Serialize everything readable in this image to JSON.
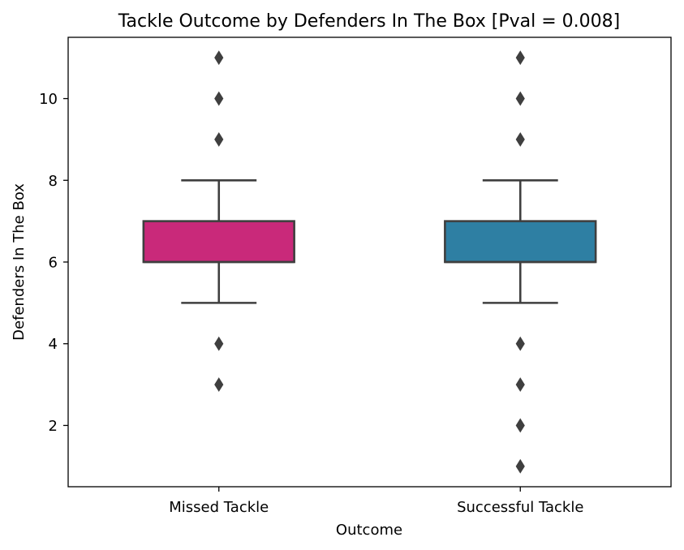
{
  "chart_data": {
    "type": "box",
    "title": "Tackle Outcome by Defenders In The Box [Pval = 0.008]",
    "xlabel": "Outcome",
    "ylabel": "Defenders In The Box",
    "categories": [
      "Missed Tackle",
      "Successful Tackle"
    ],
    "ylim": [
      0.5,
      11.5
    ],
    "yticks": [
      2,
      4,
      6,
      8,
      10
    ],
    "grid": false,
    "boxes": [
      {
        "category": "Missed Tackle",
        "color": "#c9297a",
        "whisker_low": 5,
        "q1": 6,
        "median": 6,
        "q3": 7,
        "whisker_high": 8,
        "outliers": [
          3,
          4,
          9,
          10,
          11
        ]
      },
      {
        "category": "Successful Tackle",
        "color": "#2e7fa3",
        "whisker_low": 5,
        "q1": 6,
        "median": 6,
        "q3": 7,
        "whisker_high": 8,
        "outliers": [
          1,
          2,
          3,
          4,
          9,
          10,
          11
        ]
      }
    ]
  }
}
